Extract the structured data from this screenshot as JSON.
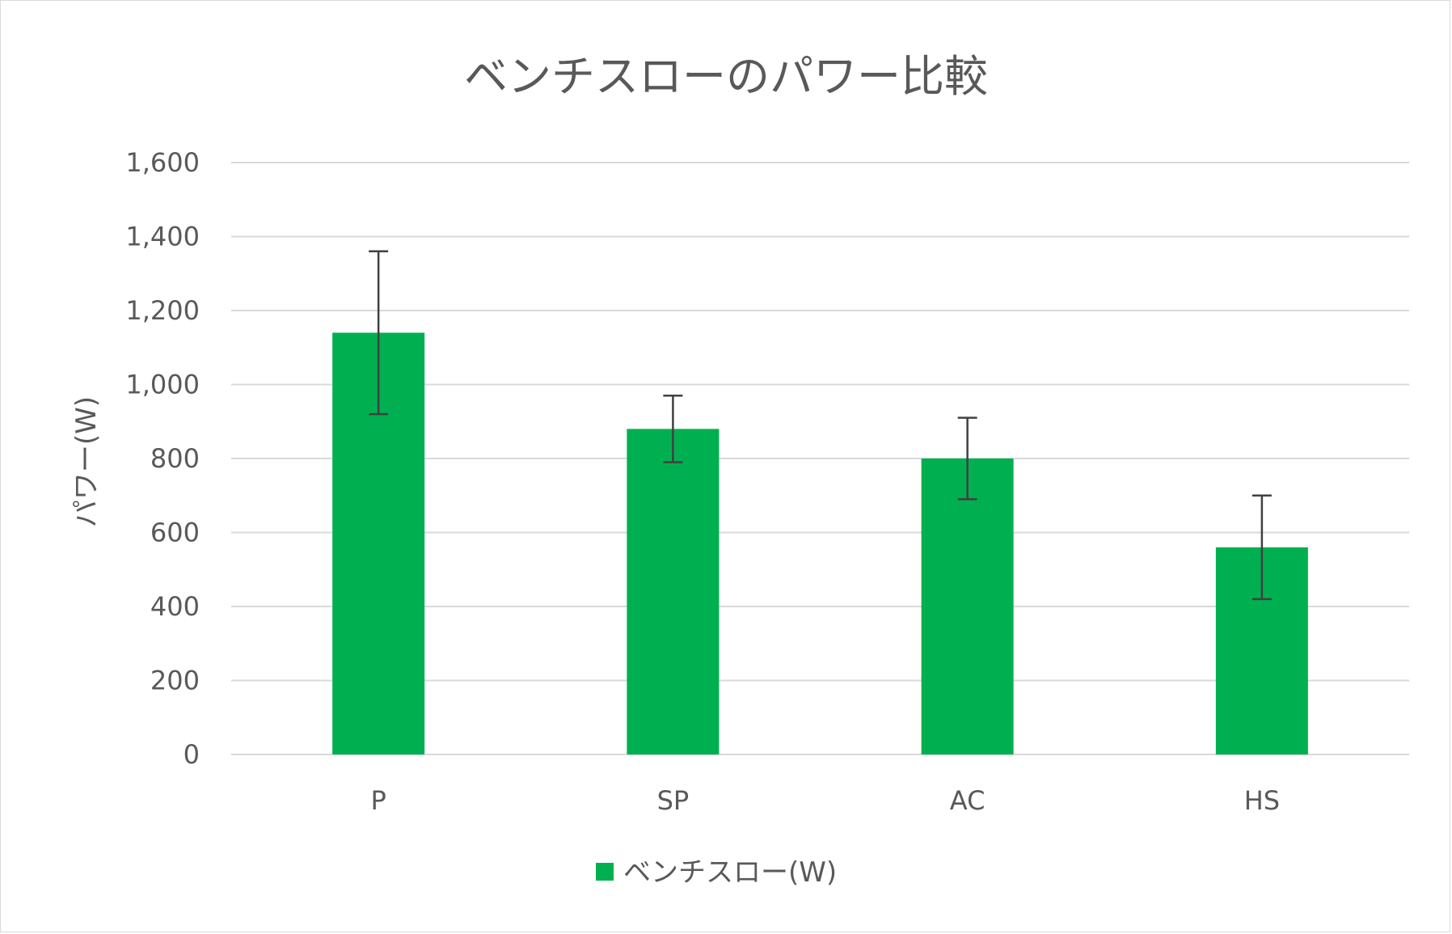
{
  "chart_data": {
    "type": "bar",
    "title": "ベンチスローのパワー比較",
    "xlabel": "",
    "ylabel": "パワー(W)",
    "categories": [
      "P",
      "SP",
      "AC",
      "HS"
    ],
    "series": [
      {
        "name": "ベンチスロー(W)",
        "values": [
          1140,
          880,
          800,
          560
        ],
        "error_low": [
          920,
          790,
          690,
          420
        ],
        "error_high": [
          1360,
          970,
          910,
          700
        ],
        "color": "#00b050"
      }
    ],
    "ylim": [
      0,
      1600
    ],
    "yticks": [
      0,
      200,
      400,
      600,
      800,
      1000,
      1200,
      1400,
      1600
    ],
    "ytick_labels": [
      "0",
      "200",
      "400",
      "600",
      "800",
      "1,000",
      "1,200",
      "1,400",
      "1,600"
    ],
    "grid": true,
    "legend_position": "bottom"
  }
}
